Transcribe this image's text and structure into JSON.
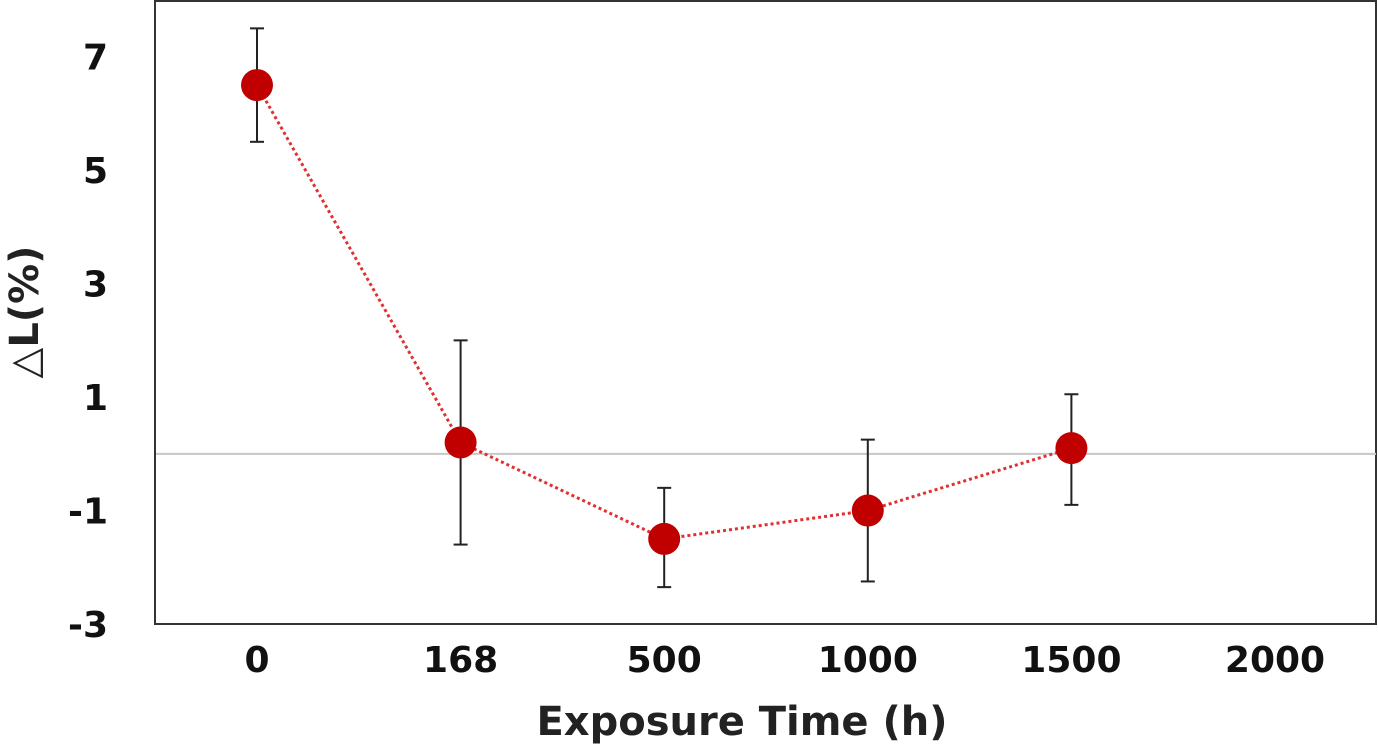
{
  "chart_data": {
    "type": "scatter",
    "title": "",
    "xlabel": "Exposure Time (h)",
    "ylabel": "△L(%)",
    "categories": [
      "0",
      "168",
      "500",
      "1000",
      "1500",
      "2000"
    ],
    "y_ticks": [
      "7",
      "5",
      "3",
      "1",
      "-1",
      "-3"
    ],
    "ylim": [
      -3,
      8
    ],
    "grid": false,
    "legend": "none",
    "reference_line_y": 0,
    "series": [
      {
        "x": [
          "0",
          "168",
          "500",
          "1000",
          "1500"
        ],
        "values": [
          6.5,
          0.2,
          -1.5,
          -1.0,
          0.1
        ],
        "error_upper": [
          7.5,
          2.0,
          -0.6,
          0.25,
          1.05
        ],
        "error_lower": [
          5.5,
          -1.6,
          -2.35,
          -2.25,
          -0.9
        ],
        "marker_color": "#c00000",
        "line_color": "#e03030",
        "line_style": "dotted"
      }
    ]
  }
}
